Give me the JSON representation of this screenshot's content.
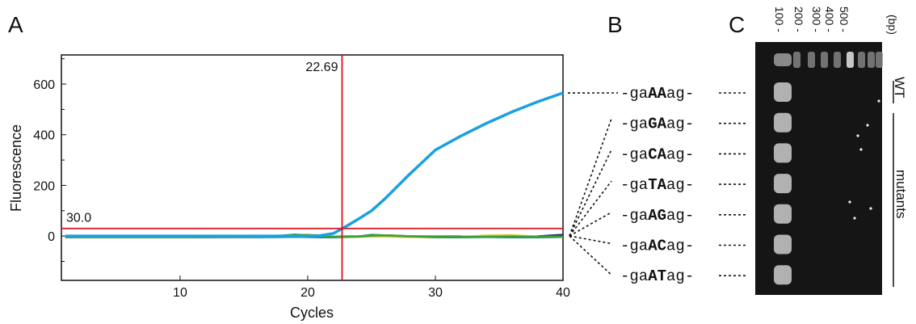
{
  "chart_data": {
    "type": "line",
    "panel_label": "A",
    "xlabel": "Cycles",
    "ylabel": "Fluorescence",
    "x": [
      1,
      5,
      10,
      15,
      18,
      19,
      20,
      21,
      22,
      23,
      24,
      25,
      26,
      27,
      28,
      30,
      32,
      34,
      36,
      38,
      40
    ],
    "series": [
      {
        "color": "#1aa0e0",
        "values": [
          0,
          0,
          0,
          0,
          0,
          0,
          0,
          2,
          10,
          38,
          68,
          100,
          145,
          195,
          245,
          340,
          395,
          445,
          490,
          530,
          565
        ]
      },
      {
        "color": "#3aa03a",
        "values": [
          -3,
          -3,
          -3,
          -2,
          2,
          6,
          3,
          -1,
          -3,
          -3,
          -2,
          2,
          3,
          1,
          -1,
          -3,
          -4,
          -3,
          -2,
          -3,
          -2
        ]
      },
      {
        "color": "#e0c020",
        "values": [
          -4,
          -4,
          -4,
          -3,
          0,
          3,
          6,
          2,
          -2,
          -4,
          -3,
          -2,
          -1,
          -3,
          -4,
          -4,
          -3,
          2,
          3,
          -2,
          -3
        ]
      },
      {
        "color": "#1e8a9a",
        "values": [
          -5,
          -5,
          -5,
          -5,
          -4,
          -3,
          -4,
          -5,
          -5,
          -4,
          -2,
          5,
          3,
          0,
          -3,
          -5,
          -5,
          -4,
          -5,
          -5,
          -4
        ]
      },
      {
        "color": "#1a2a6a",
        "values": [
          -2,
          -2,
          -2,
          -2,
          -2,
          -2,
          -2,
          -2,
          -2,
          -2,
          -1,
          2,
          3,
          1,
          -1,
          -2,
          -2,
          -1,
          -2,
          -1,
          5
        ]
      }
    ],
    "xlim": [
      0.7,
      40
    ],
    "ylim": [
      -175,
      715
    ],
    "xticks": [
      10,
      20,
      30,
      40
    ],
    "yticks": [
      0,
      200,
      400,
      600
    ],
    "yminorticks": [
      -100,
      100,
      300,
      500,
      700
    ],
    "threshold": {
      "value": 30,
      "label": "30.0",
      "color": "#e0101a"
    },
    "ct": {
      "value": 22.69,
      "label": "22.69",
      "color": "#e0101a"
    }
  },
  "panel_b": {
    "label": "B",
    "sequences": [
      {
        "pre": "-ga",
        "bold": "AA",
        "post": "ag-"
      },
      {
        "pre": "-ga",
        "bold": "GA",
        "post": "ag-"
      },
      {
        "pre": "-ga",
        "bold": "CA",
        "post": "ag-"
      },
      {
        "pre": "-ga",
        "bold": "TA",
        "post": "ag-"
      },
      {
        "pre": "-ga",
        "bold": "AG",
        "post": "ag-"
      },
      {
        "pre": "-ga",
        "bold": "AC",
        "post": "ag-"
      },
      {
        "pre": "-ga",
        "bold": "AT",
        "post": "ag-"
      }
    ]
  },
  "panel_c": {
    "label": "C",
    "ladder": [
      "100 -",
      "200 -",
      "300 -",
      "400 -",
      "500 -"
    ],
    "unit": "(bp)",
    "wt": "WT",
    "mutants": "mutants"
  }
}
